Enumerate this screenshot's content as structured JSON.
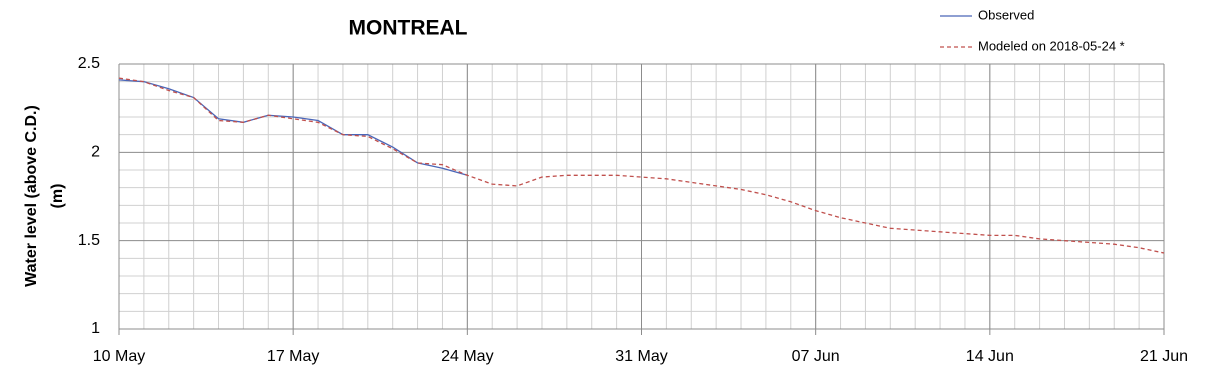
{
  "chart_data": {
    "type": "line",
    "title": "MONTREAL",
    "y_label": [
      "Water level (above C.D.)",
      "(m)"
    ],
    "x": [
      "10 May",
      "11 May",
      "12 May",
      "13 May",
      "14 May",
      "15 May",
      "16 May",
      "17 May",
      "18 May",
      "19 May",
      "20 May",
      "21 May",
      "22 May",
      "23 May",
      "24 May",
      "25 May",
      "26 May",
      "27 May",
      "28 May",
      "29 May",
      "30 May",
      "31 May",
      "01 Jun",
      "02 Jun",
      "03 Jun",
      "04 Jun",
      "05 Jun",
      "06 Jun",
      "07 Jun",
      "08 Jun",
      "09 Jun",
      "10 Jun",
      "11 Jun",
      "12 Jun",
      "13 Jun",
      "14 Jun",
      "15 Jun",
      "16 Jun",
      "17 Jun",
      "18 Jun",
      "19 Jun",
      "20 Jun",
      "21 Jun"
    ],
    "series": [
      {
        "name": "Observed",
        "color": "#4a66b8",
        "dash": false,
        "values": [
          2.41,
          2.4,
          2.36,
          2.31,
          2.19,
          2.17,
          2.21,
          2.2,
          2.18,
          2.1,
          2.1,
          2.03,
          1.94,
          1.91,
          1.87,
          null,
          null,
          null,
          null,
          null,
          null,
          null,
          null,
          null,
          null,
          null,
          null,
          null,
          null,
          null,
          null,
          null,
          null,
          null,
          null,
          null,
          null,
          null,
          null,
          null,
          null,
          null,
          null
        ]
      },
      {
        "name": "Modeled on 2018-05-24 *",
        "color": "#c0504d",
        "dash": true,
        "values": [
          2.42,
          2.4,
          2.35,
          2.31,
          2.18,
          2.17,
          2.21,
          2.19,
          2.17,
          2.1,
          2.09,
          2.02,
          1.94,
          1.93,
          1.87,
          1.82,
          1.81,
          1.86,
          1.87,
          1.87,
          1.87,
          1.86,
          1.85,
          1.83,
          1.81,
          1.79,
          1.76,
          1.72,
          1.67,
          1.63,
          1.6,
          1.57,
          1.56,
          1.55,
          1.54,
          1.53,
          1.53,
          1.51,
          1.5,
          1.49,
          1.48,
          1.46,
          1.43
        ]
      }
    ],
    "xlim": [
      "10 May",
      "21 Jun"
    ],
    "xticks": [
      "10 May",
      "17 May",
      "24 May",
      "31 May",
      "07 Jun",
      "14 Jun",
      "21 Jun"
    ],
    "ylim": [
      1,
      2.5
    ],
    "yticks": [
      1,
      1.5,
      2,
      2.5
    ],
    "y_minor_ticks": [
      1.1,
      1.2,
      1.3,
      1.4,
      1.6,
      1.7,
      1.8,
      1.9,
      2.1,
      2.2,
      2.3,
      2.4
    ],
    "grid": true,
    "minor_grid": true,
    "legend": "top-right"
  }
}
